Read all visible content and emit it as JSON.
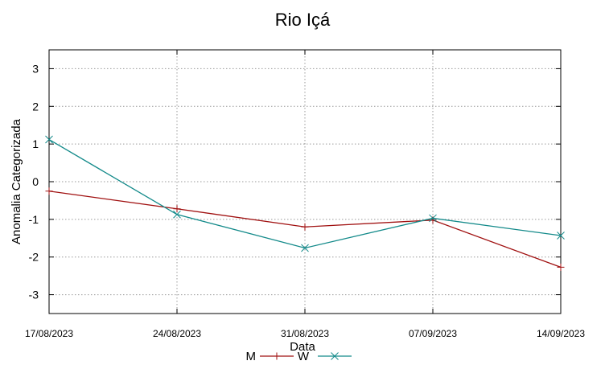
{
  "chart_data": {
    "type": "line",
    "title": "Rio Içá",
    "xlabel": "Data",
    "ylabel": "Anomalia Categorizada",
    "categories": [
      "17/08/2023",
      "24/08/2023",
      "31/08/2023",
      "07/09/2023",
      "14/09/2023"
    ],
    "ylim": [
      -3.5,
      3.5
    ],
    "yticks": [
      3,
      2,
      1,
      0,
      -1,
      -2,
      -3
    ],
    "grid": true,
    "legend": "bottom",
    "series": [
      {
        "name": "M",
        "color": "#a01010",
        "marker": "plus",
        "values": [
          -0.25,
          -0.72,
          -1.2,
          -1.02,
          -2.27
        ]
      },
      {
        "name": "W",
        "color": "#138a8a",
        "marker": "x",
        "values": [
          1.12,
          -0.87,
          -1.76,
          -0.97,
          -1.43
        ]
      }
    ]
  }
}
